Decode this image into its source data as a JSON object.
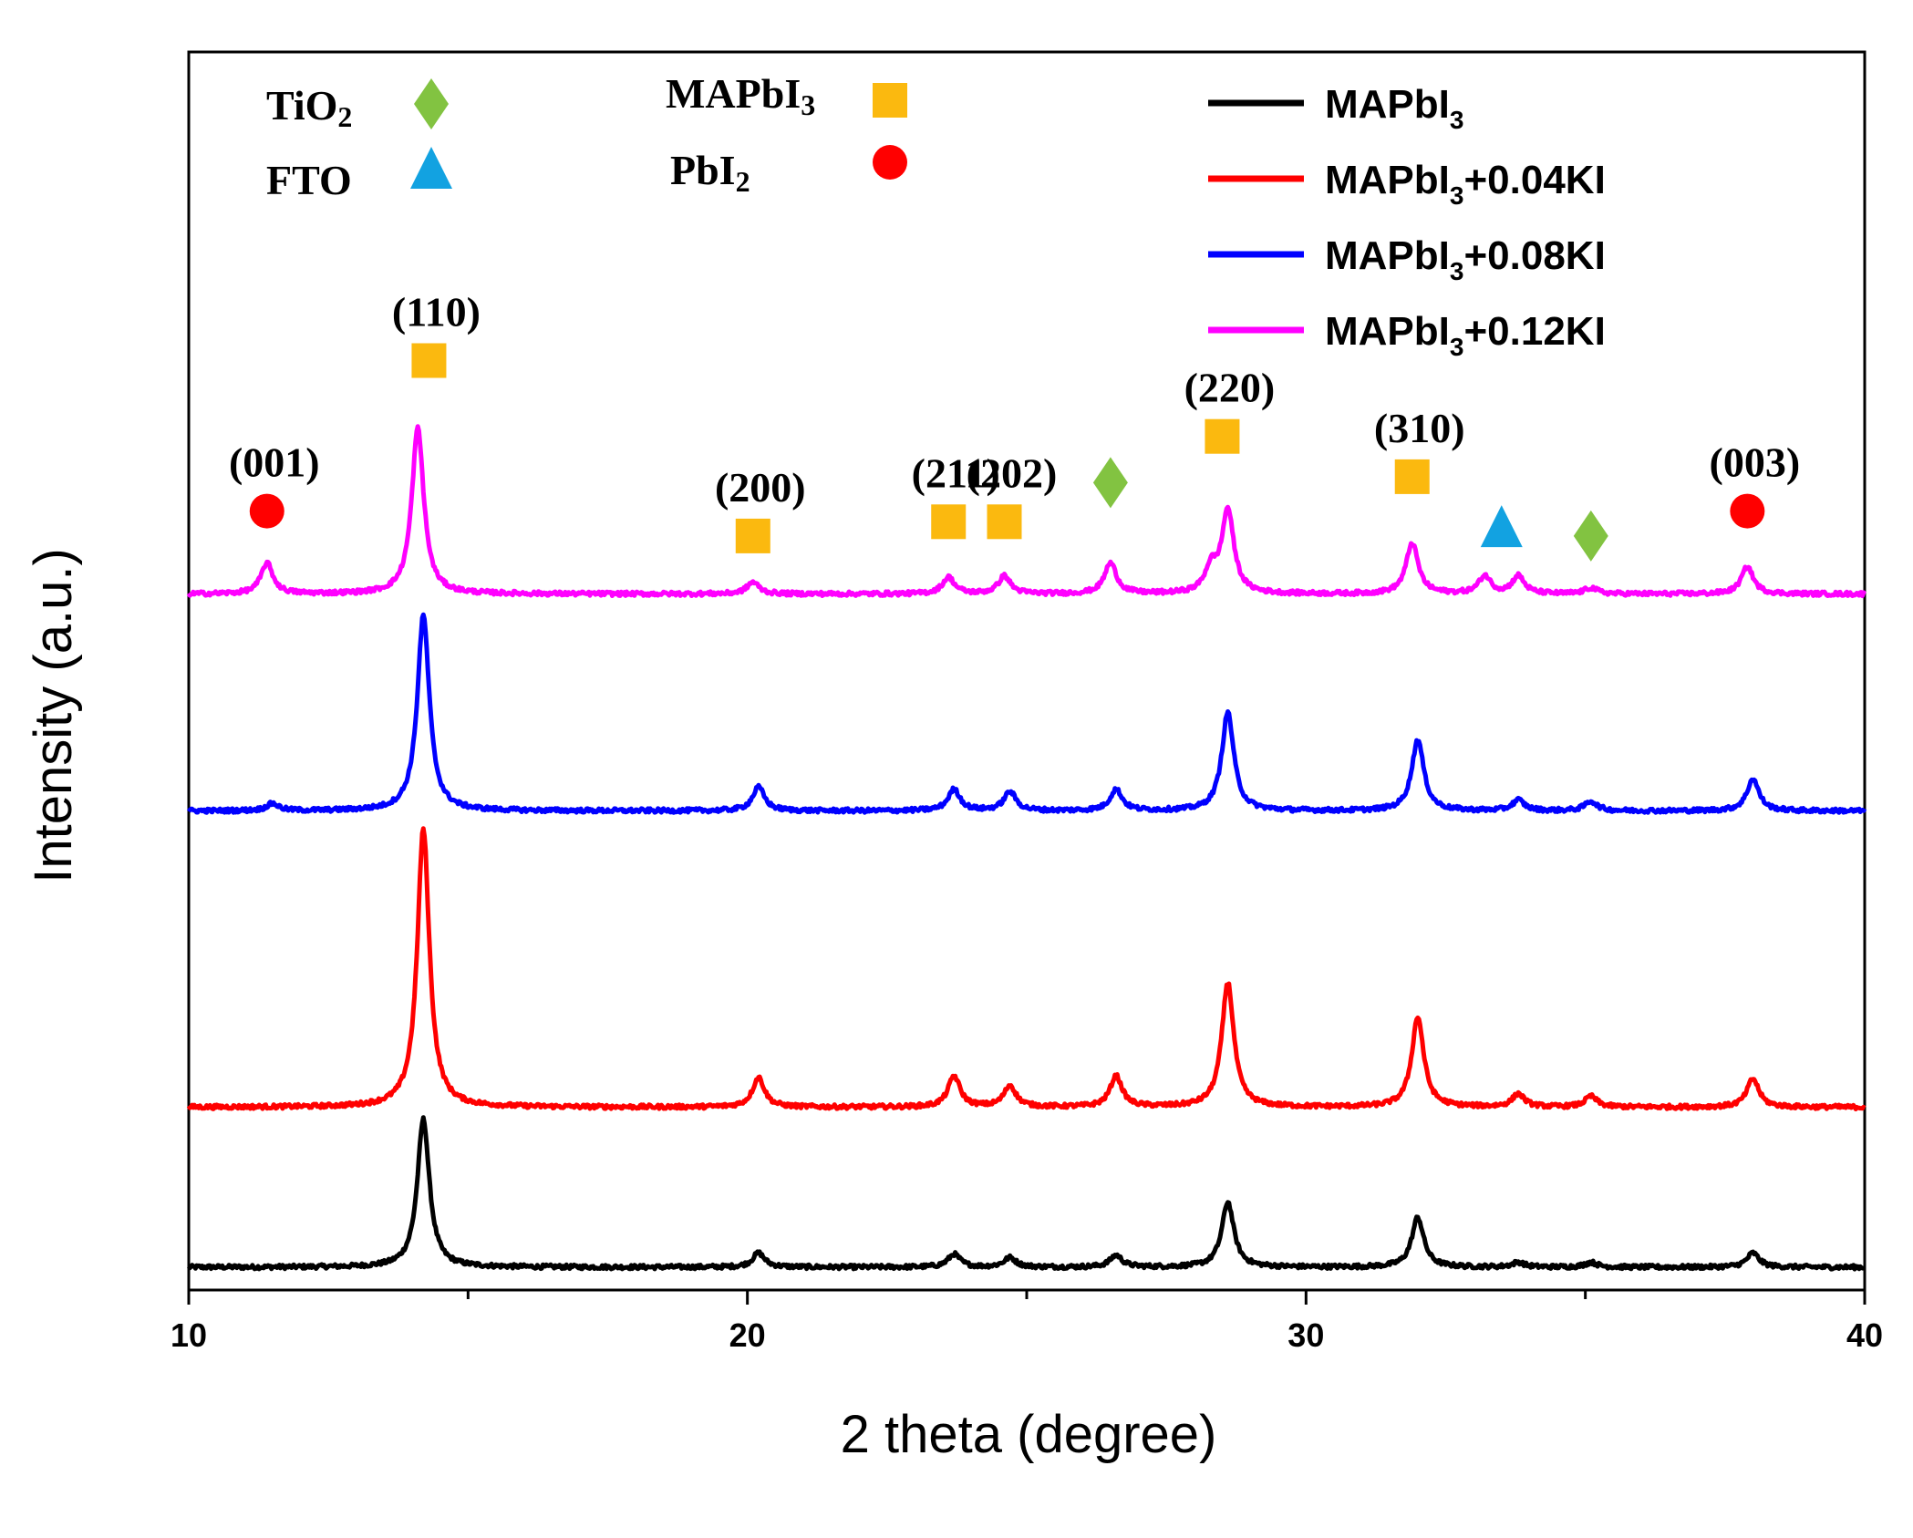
{
  "chart_data": {
    "type": "line",
    "title": "",
    "xlabel": "2 theta (degree)",
    "ylabel": "Intensity (a.u.)",
    "xlim": [
      10,
      40
    ],
    "xticks": [
      "10",
      "20",
      "30",
      "40"
    ],
    "x_minor_ticks": [
      15,
      25,
      35
    ],
    "ylim": [
      0,
      100
    ],
    "grid": false,
    "legend_position": "top-right",
    "series": [
      {
        "name": "MAPbI3",
        "label_main": "MAPbI",
        "label_sub": "3",
        "label_suffix": "",
        "color": "#000000",
        "baseline": 0,
        "peaks": [
          [
            14.2,
            12.5
          ],
          [
            20.2,
            1.2
          ],
          [
            23.7,
            1.1
          ],
          [
            24.7,
            0.8
          ],
          [
            26.6,
            1.0
          ],
          [
            28.6,
            5.5
          ],
          [
            32.0,
            4.2
          ],
          [
            33.8,
            0.4
          ],
          [
            35.1,
            0.4
          ],
          [
            38.0,
            1.2
          ]
        ]
      },
      {
        "name": "MAPbI3+0.04KI",
        "label_main": "MAPbI",
        "label_sub": "3",
        "label_suffix": "+0.04KI",
        "color": "#ff0000",
        "baseline": 13.5,
        "peaks": [
          [
            14.2,
            23.5
          ],
          [
            20.2,
            2.5
          ],
          [
            23.7,
            2.6
          ],
          [
            24.7,
            1.8
          ],
          [
            26.6,
            2.6
          ],
          [
            28.6,
            10.5
          ],
          [
            32.0,
            7.6
          ],
          [
            33.8,
            1.1
          ],
          [
            35.1,
            0.9
          ],
          [
            38.0,
            2.4
          ]
        ]
      },
      {
        "name": "MAPbI3+0.08KI",
        "label_main": "MAPbI",
        "label_sub": "3",
        "label_suffix": "+0.08KI",
        "color": "#0000ff",
        "baseline": 38.5,
        "peaks": [
          [
            11.5,
            0.6
          ],
          [
            14.2,
            16.5
          ],
          [
            20.2,
            2.0
          ],
          [
            23.7,
            1.8
          ],
          [
            24.7,
            1.6
          ],
          [
            26.6,
            1.8
          ],
          [
            28.6,
            8.3
          ],
          [
            32.0,
            6.0
          ],
          [
            33.8,
            0.9
          ],
          [
            35.1,
            0.8
          ],
          [
            38.0,
            2.7
          ]
        ]
      },
      {
        "name": "MAPbI3+0.12KI",
        "label_main": "MAPbI",
        "label_sub": "3",
        "label_suffix": "+0.12KI",
        "color": "#ff00ff",
        "baseline": 56.8,
        "peaks": [
          [
            11.4,
            2.6
          ],
          [
            14.1,
            14.0
          ],
          [
            20.1,
            1.0
          ],
          [
            23.6,
            1.4
          ],
          [
            24.6,
            1.5
          ],
          [
            26.5,
            2.6
          ],
          [
            28.3,
            2.0
          ],
          [
            28.6,
            7.0
          ],
          [
            31.9,
            4.3
          ],
          [
            33.2,
            1.5
          ],
          [
            33.8,
            1.5
          ],
          [
            35.1,
            0.5
          ],
          [
            37.9,
            2.3
          ]
        ]
      }
    ],
    "phase_legend": [
      {
        "label_main": "TiO",
        "label_sub": "2",
        "marker": "diamond",
        "color": "#82c341"
      },
      {
        "label_main": "FTO",
        "label_sub": "",
        "marker": "triangle",
        "color": "#12a2e1"
      },
      {
        "label_main": "MAPbI",
        "label_sub": "3",
        "marker": "square",
        "color": "#fbb90f"
      },
      {
        "label_main": "PbI",
        "label_sub": "2",
        "marker": "circle",
        "color": "#ff0000"
      }
    ],
    "peak_markers": [
      {
        "x": 11.4,
        "y": 63.8,
        "marker": "circle",
        "color": "#ff0000",
        "hkl": "(001)"
      },
      {
        "x": 14.3,
        "y": 76.5,
        "marker": "square",
        "color": "#fbb90f",
        "hkl": "(110)"
      },
      {
        "x": 20.1,
        "y": 61.7,
        "marker": "square",
        "color": "#fbb90f",
        "hkl": "(200)"
      },
      {
        "x": 23.6,
        "y": 62.9,
        "marker": "square",
        "color": "#fbb90f",
        "hkl": "(211)"
      },
      {
        "x": 24.6,
        "y": 62.9,
        "marker": "square",
        "color": "#fbb90f",
        "hkl": "(202)"
      },
      {
        "x": 26.5,
        "y": 66.2,
        "marker": "diamond",
        "color": "#82c341",
        "hkl": ""
      },
      {
        "x": 28.5,
        "y": 70.1,
        "marker": "square",
        "color": "#fbb90f",
        "hkl": "(220)"
      },
      {
        "x": 31.9,
        "y": 66.7,
        "marker": "square",
        "color": "#fbb90f",
        "hkl": "(310)"
      },
      {
        "x": 33.5,
        "y": 62.3,
        "marker": "triangle",
        "color": "#12a2e1",
        "hkl": ""
      },
      {
        "x": 35.1,
        "y": 61.7,
        "marker": "diamond",
        "color": "#82c341",
        "hkl": ""
      },
      {
        "x": 37.9,
        "y": 63.8,
        "marker": "circle",
        "color": "#ff0000",
        "hkl": "(003)"
      }
    ]
  }
}
